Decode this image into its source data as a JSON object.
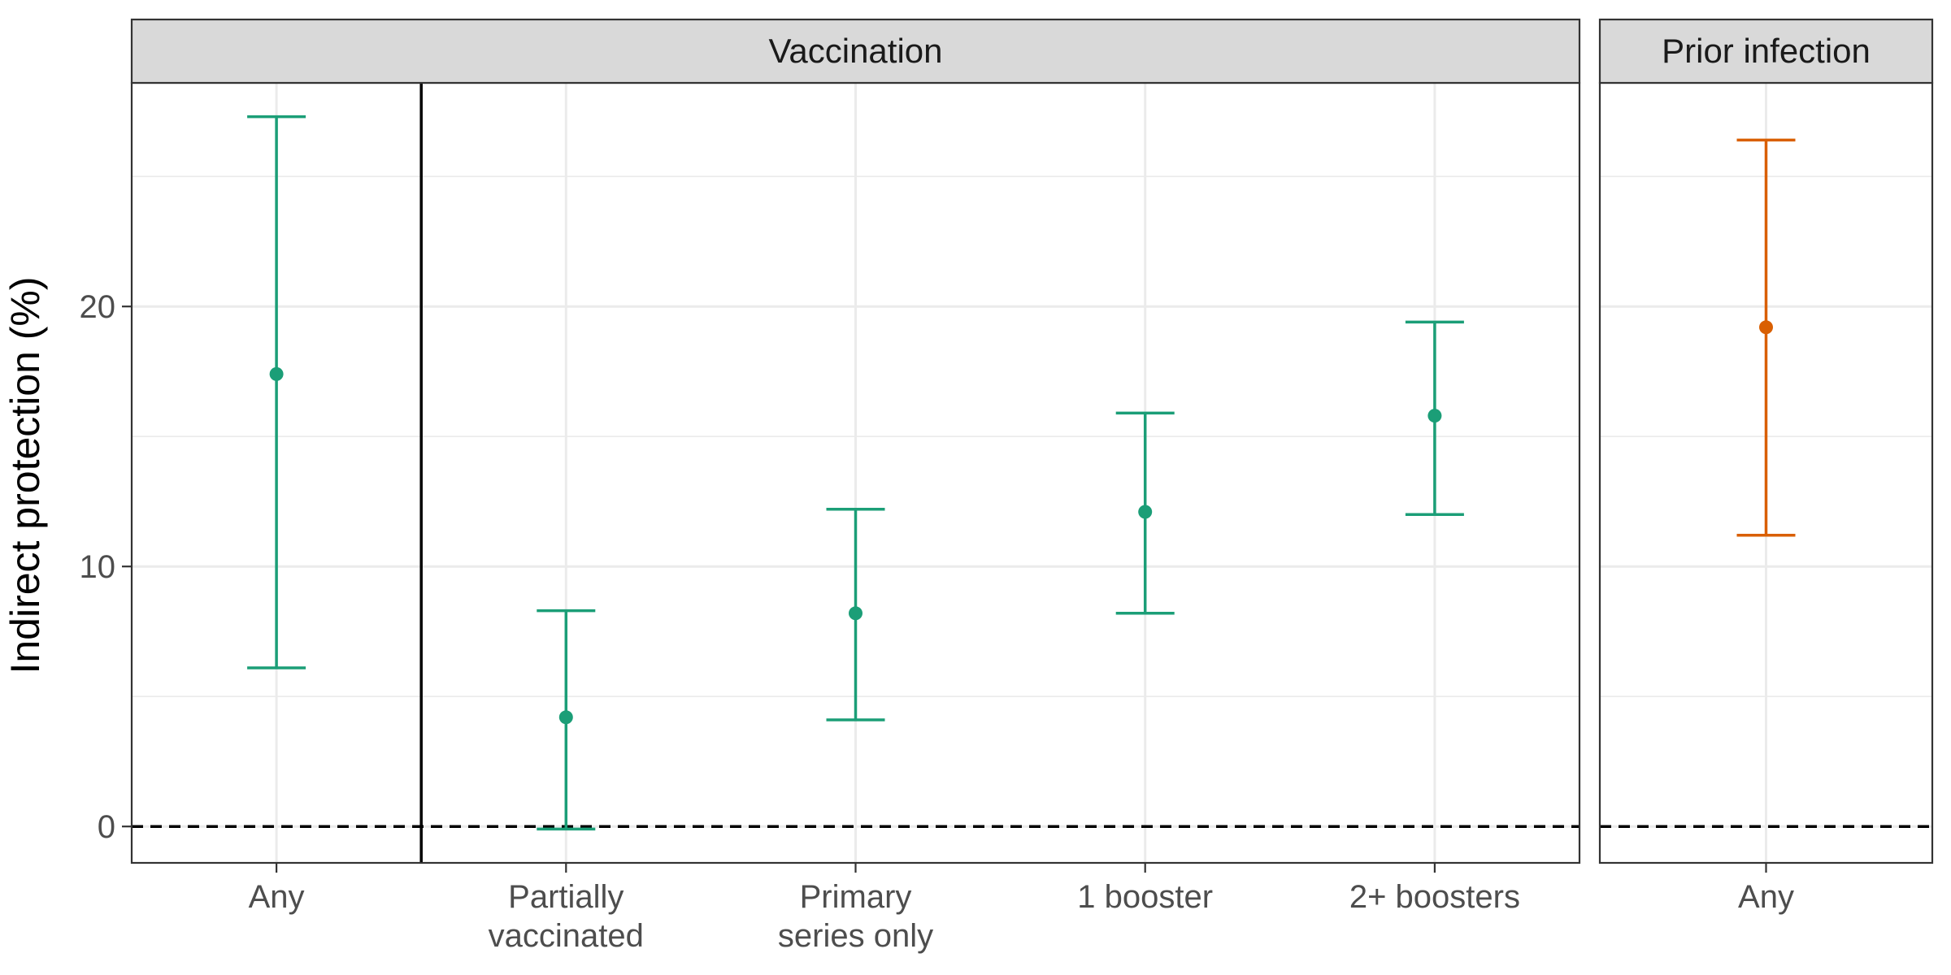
{
  "chart_data": {
    "type": "scatter",
    "subtype": "point-with-errorbars",
    "ylabel": "Indirect protection (%)",
    "xlabel": "",
    "ylim": [
      -1.4,
      28.6
    ],
    "yticks": [
      0,
      10,
      20
    ],
    "reference_line": {
      "y": 0,
      "style": "dashed"
    },
    "grid": true,
    "panels": [
      {
        "strip": "Vaccination",
        "color": "#1b9e77",
        "separator_after_index": 0,
        "categories": [
          "Any",
          "Partially\nvaccinated",
          "Primary\nseries only",
          "1 booster",
          "2+ boosters"
        ],
        "points": [
          {
            "estimate": 17.4,
            "lower": 6.1,
            "upper": 27.3
          },
          {
            "estimate": 4.2,
            "lower": -0.1,
            "upper": 8.3
          },
          {
            "estimate": 8.2,
            "lower": 4.1,
            "upper": 12.2
          },
          {
            "estimate": 12.1,
            "lower": 8.2,
            "upper": 15.9
          },
          {
            "estimate": 15.8,
            "lower": 12.0,
            "upper": 19.4
          }
        ]
      },
      {
        "strip": "Prior infection",
        "color": "#d95f02",
        "categories": [
          "Any"
        ],
        "points": [
          {
            "estimate": 19.2,
            "lower": 11.2,
            "upper": 26.4
          }
        ]
      }
    ]
  }
}
